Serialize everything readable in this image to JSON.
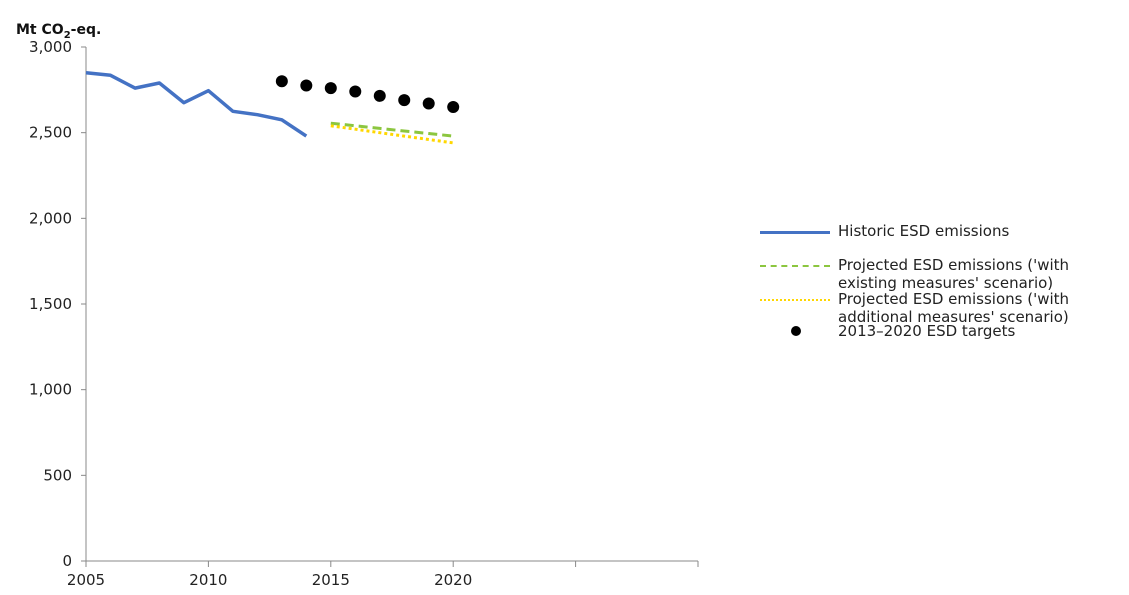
{
  "chart_data": {
    "type": "line",
    "ylabel_parts": {
      "pre": "Mt CO",
      "sub": "2",
      "post": "-eq."
    },
    "xlim": [
      2005,
      2030
    ],
    "ylim": [
      0,
      3000
    ],
    "xticks": [
      2005,
      2010,
      2015,
      2020,
      2025,
      2030
    ],
    "xtick_labels": [
      "2005",
      "2010",
      "2015",
      "2020",
      "",
      ""
    ],
    "yticks": [
      0,
      500,
      1000,
      1500,
      2000,
      2500,
      3000
    ],
    "ytick_labels": [
      "0",
      "500",
      "1,000",
      "1,500",
      "2,000",
      "2,500",
      "3,000"
    ],
    "grid": false,
    "legend_position": "right",
    "series": [
      {
        "name": "Historic ESD emissions",
        "style": "solid-line",
        "color": "#4472c4",
        "x": [
          2005,
          2006,
          2007,
          2008,
          2009,
          2010,
          2011,
          2012,
          2013,
          2014
        ],
        "y": [
          2850,
          2835,
          2760,
          2790,
          2675,
          2745,
          2625,
          2605,
          2575,
          2480
        ]
      },
      {
        "name": "Projected ESD emissions ('with existing measures' scenario)",
        "legend_lines": [
          "Projected ESD emissions ('with",
          "existing measures' scenario)"
        ],
        "style": "dashed-line",
        "color": "#8cc63f",
        "x": [
          2015,
          2016,
          2017,
          2018,
          2019,
          2020
        ],
        "y": [
          2555,
          2540,
          2525,
          2510,
          2495,
          2480
        ]
      },
      {
        "name": "Projected ESD emissions ('with additional measures' scenario)",
        "legend_lines": [
          "Projected ESD emissions ('with",
          "additional measures' scenario)"
        ],
        "style": "dotted-line",
        "color": "#ffd700",
        "x": [
          2015,
          2016,
          2017,
          2018,
          2019,
          2020
        ],
        "y": [
          2540,
          2520,
          2500,
          2480,
          2460,
          2440
        ]
      },
      {
        "name": "2013–2020 ESD targets",
        "style": "markers",
        "color": "#000000",
        "x": [
          2013,
          2014,
          2015,
          2016,
          2017,
          2018,
          2019,
          2020
        ],
        "y": [
          2800,
          2775,
          2760,
          2740,
          2715,
          2690,
          2670,
          2650
        ]
      }
    ]
  }
}
